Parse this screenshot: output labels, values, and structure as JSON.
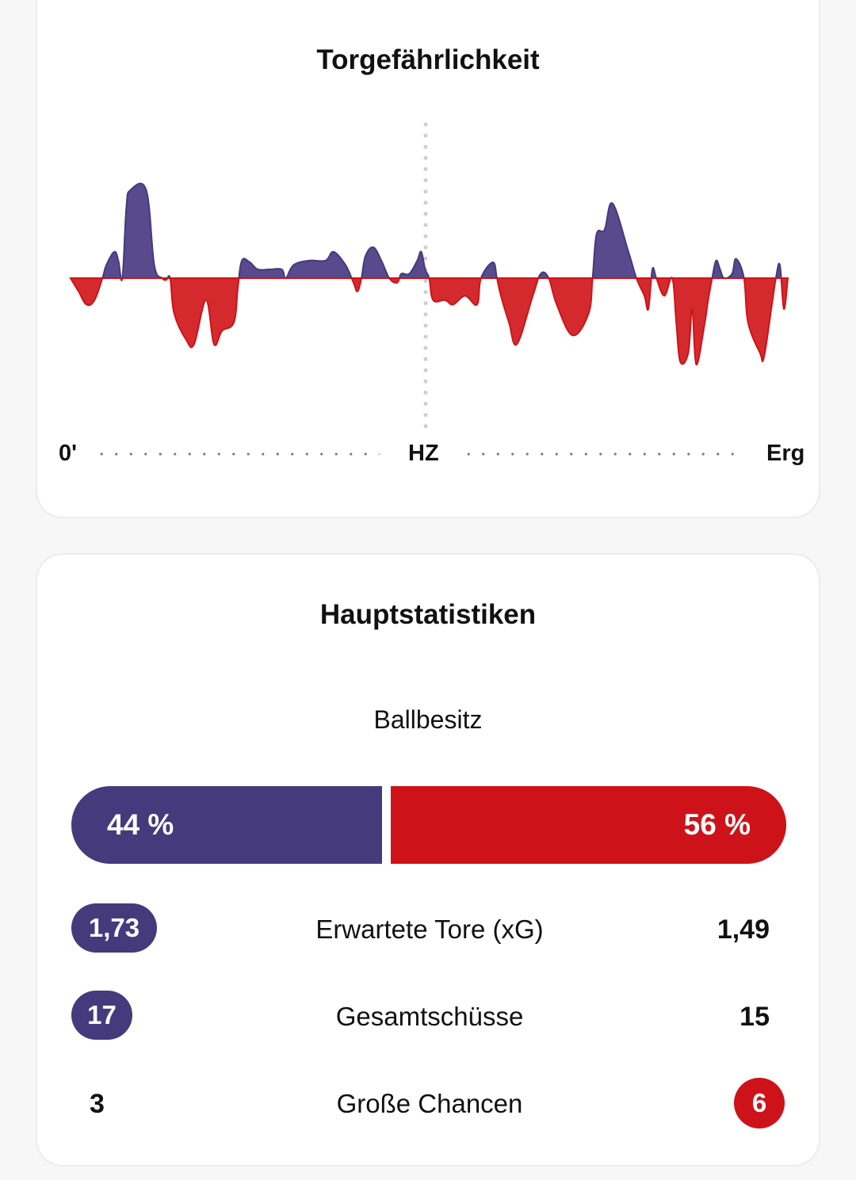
{
  "colors": {
    "home": "#453a7b",
    "away": "#cd1319",
    "home_area": "#584a8c",
    "away_area": "#d42a2e"
  },
  "momentum": {
    "title": "Torgefährlichkeit",
    "axis": {
      "start": "0'",
      "half": "HZ",
      "end": "Erg"
    }
  },
  "chart_data": {
    "type": "area",
    "title": "Torgefährlichkeit",
    "xlabel": "",
    "ylabel": "",
    "x_tick_labels": [
      "0'",
      "HZ",
      "Erg"
    ],
    "x_range": [
      0,
      90
    ],
    "ylim": [
      -1,
      1
    ],
    "baseline": 0,
    "series": [
      {
        "values": [
          [
            0,
            0
          ],
          [
            1,
            -0.15
          ],
          [
            2,
            -0.3
          ],
          [
            3,
            -0.25
          ],
          [
            4,
            0
          ],
          [
            4.5,
            0.15
          ],
          [
            5.5,
            0.3
          ],
          [
            6,
            0.2
          ],
          [
            6.5,
            0
          ],
          [
            7,
            0.8
          ],
          [
            7.5,
            1.0
          ],
          [
            9.5,
            1.0
          ],
          [
            10.5,
            0.15
          ],
          [
            11.5,
            0
          ],
          [
            12,
            -0.02
          ],
          [
            12.5,
            0
          ],
          [
            13,
            -0.4
          ],
          [
            14.5,
            -0.7
          ],
          [
            15.5,
            -0.75
          ],
          [
            17,
            -0.25
          ],
          [
            18,
            -0.75
          ],
          [
            19,
            -0.6
          ],
          [
            20.5,
            -0.5
          ],
          [
            21,
            -0.1
          ],
          [
            21.5,
            0.2
          ],
          [
            22.5,
            0.18
          ],
          [
            23.5,
            0.1
          ],
          [
            25,
            0.1
          ],
          [
            26.5,
            0.1
          ],
          [
            27,
            0
          ],
          [
            28,
            0.15
          ],
          [
            30,
            0.2
          ],
          [
            32,
            0.2
          ],
          [
            33,
            0.3
          ],
          [
            34.5,
            0.15
          ],
          [
            35.5,
            -0.05
          ],
          [
            36,
            -0.15
          ],
          [
            36.5,
            0
          ],
          [
            37,
            0.25
          ],
          [
            38,
            0.35
          ],
          [
            39,
            0.2
          ],
          [
            40,
            0
          ],
          [
            41,
            -0.05
          ],
          [
            41.5,
            0.05
          ],
          [
            42.5,
            0.05
          ],
          [
            43.5,
            0.2
          ],
          [
            44,
            0.3
          ],
          [
            44.5,
            0.1
          ],
          [
            45,
            0
          ],
          [
            45.5,
            -0.25
          ],
          [
            47,
            -0.25
          ],
          [
            48,
            -0.3
          ],
          [
            49.5,
            -0.2
          ],
          [
            51,
            -0.3
          ],
          [
            51.5,
            0
          ],
          [
            53,
            0.18
          ],
          [
            53.5,
            0
          ],
          [
            54,
            -0.2
          ],
          [
            55,
            -0.5
          ],
          [
            56,
            -0.75
          ],
          [
            58,
            -0.2
          ],
          [
            59,
            0.05
          ],
          [
            60,
            0
          ],
          [
            61,
            -0.3
          ],
          [
            63,
            -0.65
          ],
          [
            65,
            -0.4
          ],
          [
            65.5,
            0
          ],
          [
            66,
            0.5
          ],
          [
            67,
            0.55
          ],
          [
            68,
            0.85
          ],
          [
            70,
            0.3
          ],
          [
            71,
            0
          ],
          [
            72,
            -0.2
          ],
          [
            72.5,
            -0.35
          ],
          [
            73,
            0.1
          ],
          [
            73.5,
            0
          ],
          [
            74.5,
            -0.2
          ],
          [
            75.5,
            0
          ],
          [
            76,
            -0.5
          ],
          [
            76.5,
            -0.95
          ],
          [
            77.5,
            -0.85
          ],
          [
            78,
            -0.35
          ],
          [
            78.5,
            -0.98
          ],
          [
            79.5,
            -0.55
          ],
          [
            80,
            -0.25
          ],
          [
            80.5,
            0
          ],
          [
            81,
            0.2
          ],
          [
            81.5,
            0.1
          ],
          [
            82,
            0
          ],
          [
            83,
            0.05
          ],
          [
            83.5,
            0.22
          ],
          [
            84.5,
            0
          ],
          [
            85,
            -0.5
          ],
          [
            86.5,
            -0.85
          ],
          [
            87,
            -0.9
          ],
          [
            88,
            -0.3
          ],
          [
            88.5,
            0
          ],
          [
            89,
            0.15
          ],
          [
            89.5,
            -0.35
          ],
          [
            90,
            0
          ]
        ]
      }
    ],
    "grid": false
  },
  "stats": {
    "title": "Hauptstatistiken",
    "possession": {
      "label": "Ballbesitz",
      "home": "44 %",
      "away": "56 %",
      "home_fraction": 0.44,
      "away_fraction": 0.56
    },
    "rows": [
      {
        "label": "Erwartete Tore (xG)",
        "home": "1,73",
        "away": "1,49",
        "highlight": "home"
      },
      {
        "label": "Gesamtschüsse",
        "home": "17",
        "away": "15",
        "highlight": "home"
      },
      {
        "label": "Große Chancen",
        "home": "3",
        "away": "6",
        "highlight": "away"
      }
    ]
  }
}
